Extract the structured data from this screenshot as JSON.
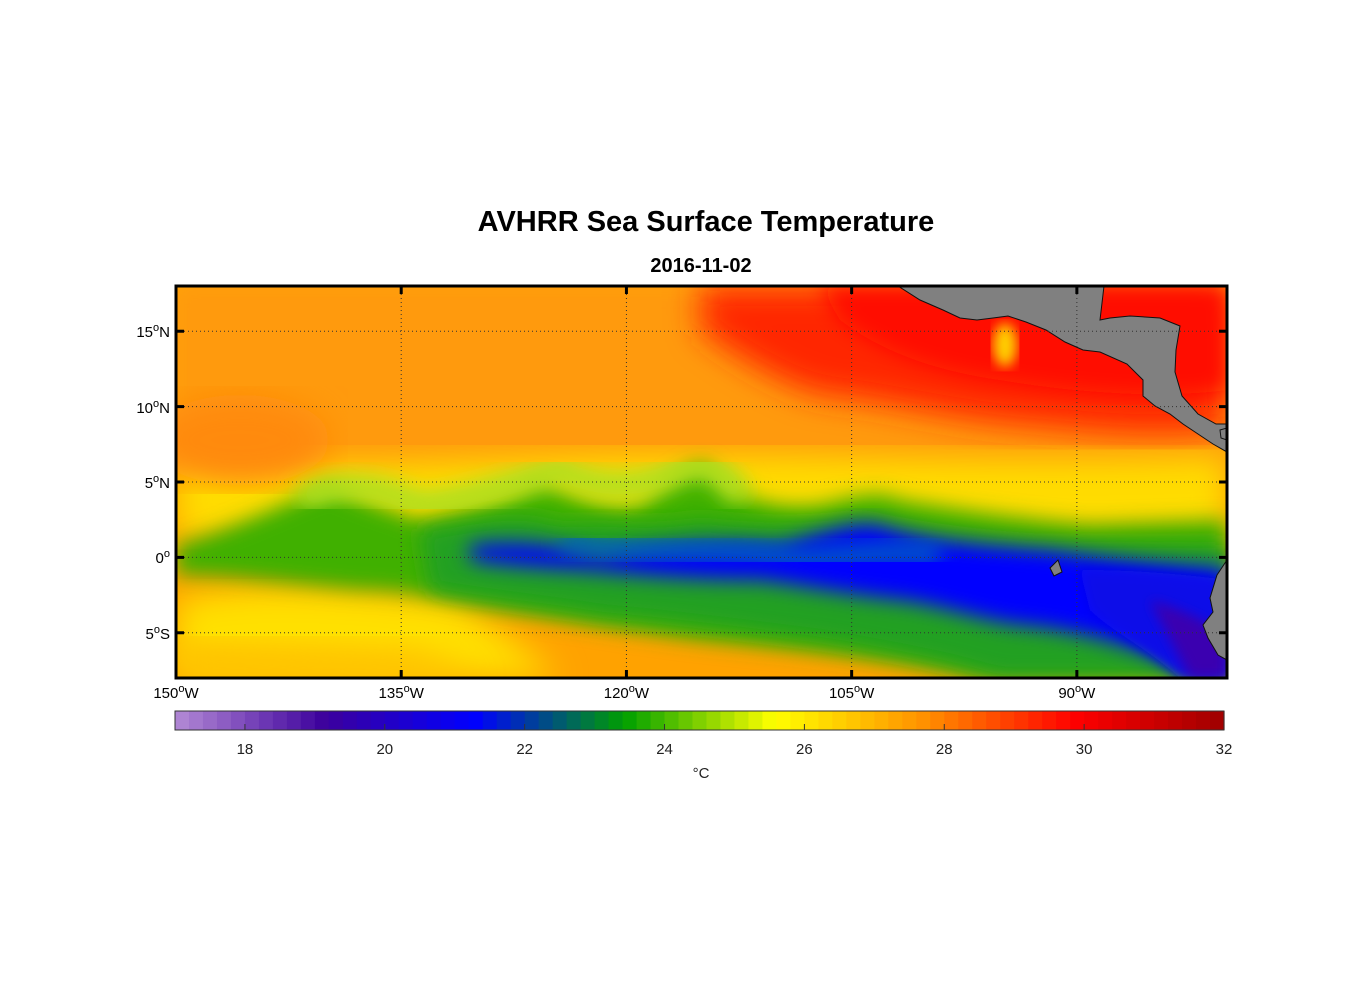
{
  "title": "AVHRR Sea Surface Temperature",
  "subtitle": "2016-11-02",
  "map": {
    "lon_range": [
      -150,
      -80
    ],
    "lat_range": [
      -8,
      18
    ],
    "lat_ticks": [
      {
        "value": 15,
        "num": "15",
        "deg": "o",
        "hemi": "N"
      },
      {
        "value": 10,
        "num": "10",
        "deg": "o",
        "hemi": "N"
      },
      {
        "value": 5,
        "num": "5",
        "deg": "o",
        "hemi": "N"
      },
      {
        "value": 0,
        "num": "0",
        "deg": "o",
        "hemi": ""
      },
      {
        "value": -5,
        "num": "5",
        "deg": "o",
        "hemi": "S"
      }
    ],
    "lon_ticks": [
      {
        "value": -150,
        "num": "150",
        "deg": "o",
        "hemi": "W"
      },
      {
        "value": -135,
        "num": "135",
        "deg": "o",
        "hemi": "W"
      },
      {
        "value": -120,
        "num": "120",
        "deg": "o",
        "hemi": "W"
      },
      {
        "value": -105,
        "num": "105",
        "deg": "o",
        "hemi": "W"
      },
      {
        "value": -90,
        "num": "90",
        "deg": "o",
        "hemi": "W"
      }
    ],
    "land_color": "#808080"
  },
  "colorbar": {
    "min": 17,
    "max": 32,
    "ticks": [
      "18",
      "20",
      "22",
      "24",
      "26",
      "28",
      "30",
      "32"
    ],
    "unit": "°C",
    "stops": [
      "#b48ad6",
      "#3c009c",
      "#0000ff",
      "#00a000",
      "#ffff00",
      "#ff9000",
      "#ff0000",
      "#9e0000"
    ]
  }
}
